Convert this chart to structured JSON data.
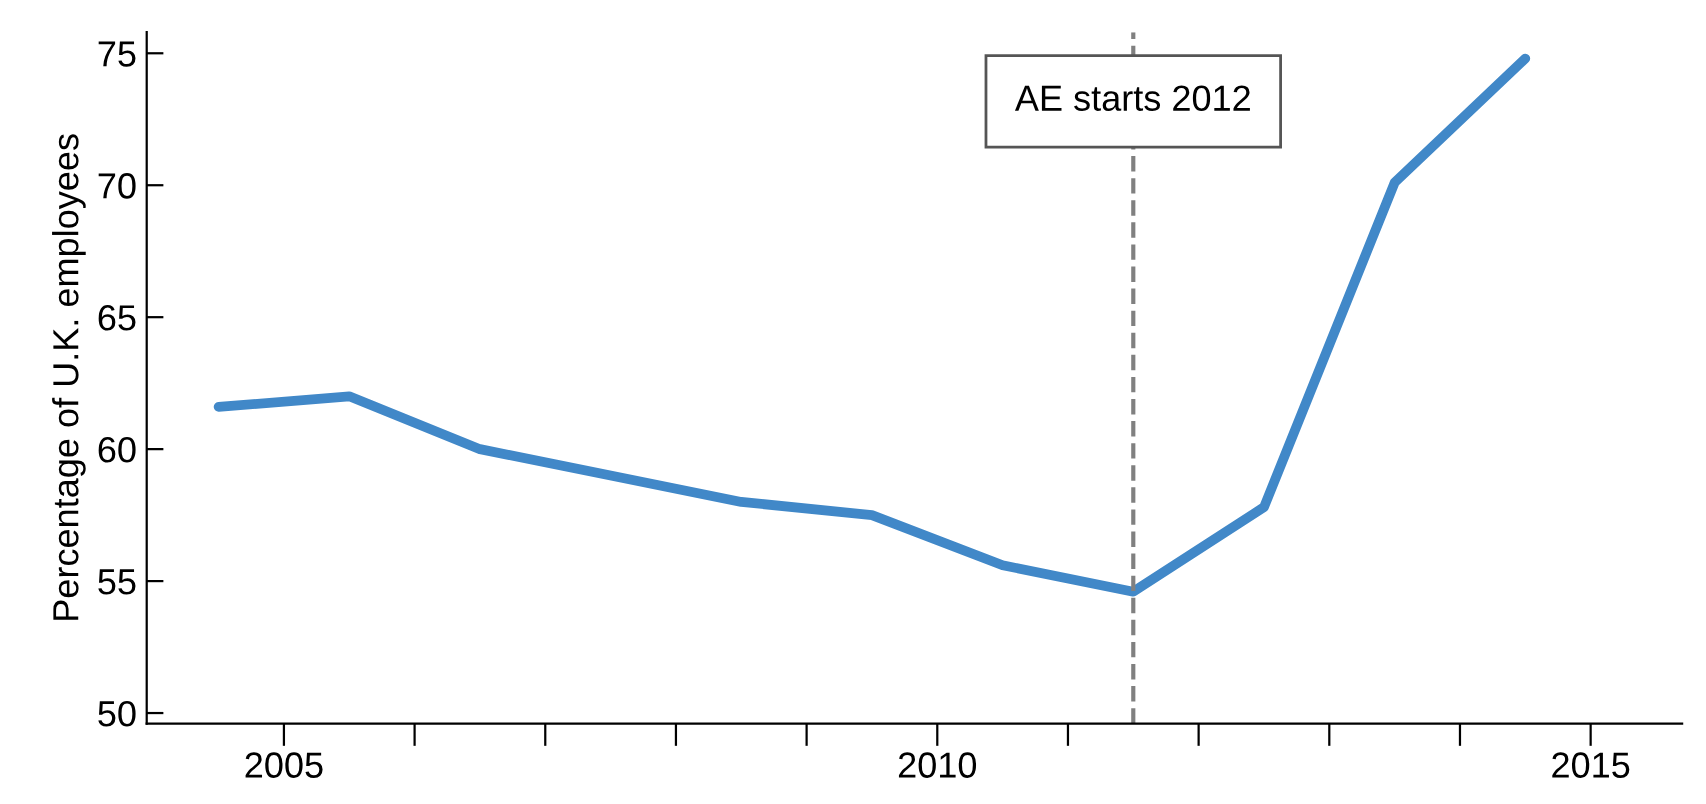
{
  "chart_data": {
    "type": "line",
    "ylabel": "Percentage of U.K. employees",
    "x": [
      2005,
      2006,
      2007,
      2008,
      2009,
      2010,
      2011,
      2012,
      2013,
      2014,
      2015
    ],
    "series": [
      {
        "color": "#4188c8",
        "values": [
          61.6,
          62.0,
          60.0,
          59.0,
          58.0,
          57.5,
          55.6,
          54.6,
          57.8,
          70.1,
          74.8
        ]
      }
    ],
    "xlim": [
      2004.45,
      2016.2
    ],
    "xticks": [
      {
        "value": 2005.5,
        "label": "2005"
      },
      {
        "value": 2006.5,
        "label": null
      },
      {
        "value": 2007.5,
        "label": null
      },
      {
        "value": 2008.5,
        "label": null
      },
      {
        "value": 2009.5,
        "label": null
      },
      {
        "value": 2010.5,
        "label": "2010"
      },
      {
        "value": 2011.5,
        "label": null
      },
      {
        "value": 2012.5,
        "label": null
      },
      {
        "value": 2013.5,
        "label": null
      },
      {
        "value": 2014.5,
        "label": null
      },
      {
        "value": 2015.5,
        "label": "2015"
      }
    ],
    "ylim": [
      49.6,
      75.8
    ],
    "yticks": [
      50,
      55,
      60,
      65,
      70,
      75
    ],
    "ref_lines": [
      {
        "axis": "x",
        "value": 2012,
        "label": "AE starts 2012",
        "color": "#808080",
        "line_style": "dashed"
      }
    ],
    "grid": false,
    "legend": false,
    "marker": "none",
    "line_style": "solid"
  }
}
